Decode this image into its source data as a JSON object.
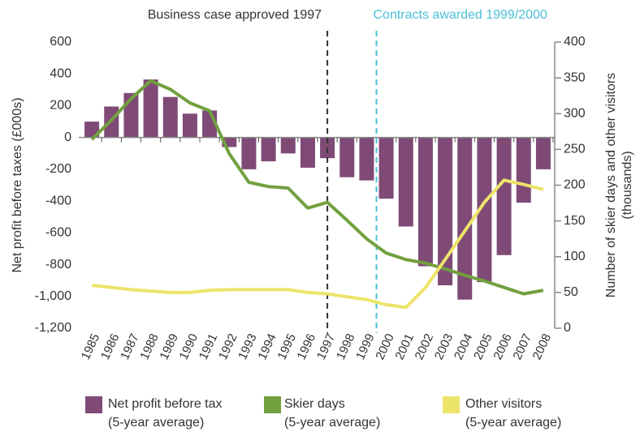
{
  "chart_data": {
    "type": "bar-line",
    "categories": [
      "1985",
      "1986",
      "1987",
      "1988",
      "1989",
      "1990",
      "1991",
      "1992",
      "1993",
      "1994",
      "1995",
      "1996",
      "1997",
      "1998",
      "1999",
      "2000",
      "2001",
      "2002",
      "2003",
      "2004",
      "2005",
      "2006",
      "2007",
      "2008"
    ],
    "series": [
      {
        "name": "Net profit before tax",
        "name_line2": "(5-year average)",
        "type": "bar",
        "color": "#7f4a76",
        "values": [
          100,
          195,
          280,
          365,
          255,
          150,
          170,
          -60,
          -200,
          -150,
          -100,
          -190,
          -130,
          -250,
          -270,
          -385,
          -560,
          -810,
          -930,
          -1020,
          -910,
          -740,
          -410,
          -200
        ]
      },
      {
        "name": "Skier days",
        "name_line2": "(5-year average)",
        "type": "line",
        "axis": "y2",
        "color": "#72a03f",
        "values": [
          264,
          291,
          321,
          346,
          334,
          315,
          304,
          244,
          204,
          198,
          196,
          168,
          176,
          151,
          125,
          105,
          96,
          91,
          83,
          74,
          66,
          57,
          48,
          53
        ]
      },
      {
        "name": "Other visitors",
        "name_line2": "(5-year average)",
        "type": "line",
        "axis": "y2",
        "color": "#ece46a",
        "values": [
          60,
          57,
          54,
          52,
          50,
          50,
          53,
          54,
          54,
          54,
          54,
          50,
          48,
          44,
          40,
          33,
          29,
          57,
          96,
          136,
          176,
          207,
          201,
          194
        ]
      }
    ],
    "ylabel": "Net profit before taxes (£000s)",
    "y2label": [
      "Number of skier days and other visitors",
      "(thousands)"
    ],
    "ylim": [
      -1200,
      600
    ],
    "yticks": [
      {
        "value": -1200,
        "label": "-1,200"
      },
      {
        "value": -1000,
        "label": "-1,000"
      },
      -800,
      -600,
      -400,
      -200,
      0,
      200,
      400,
      600
    ],
    "y2lim": [
      0,
      400
    ],
    "y2ticks": [
      0,
      50,
      100,
      150,
      200,
      250,
      300,
      350,
      400
    ],
    "annotations": [
      {
        "text": "Business case approved 1997",
        "x": 1997,
        "color": "#333333"
      },
      {
        "text": "Contracts awarded 1999/2000",
        "x": 1999.5,
        "color": "#4bbfd6"
      }
    ]
  }
}
